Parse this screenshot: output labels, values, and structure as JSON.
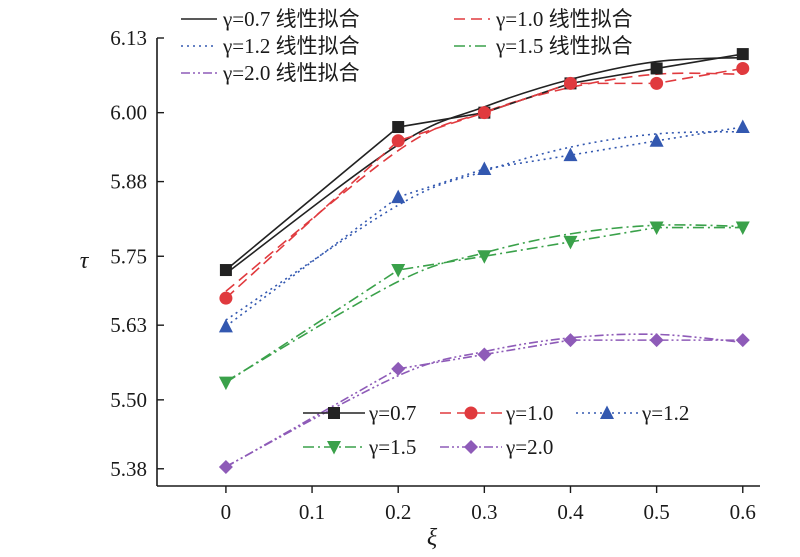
{
  "chart_data": {
    "type": "line",
    "xlabel": "ξ",
    "ylabel": "τ",
    "xlim": [
      -0.08,
      0.62
    ],
    "ylim": [
      5.35,
      6.13
    ],
    "x_ticks": [
      0,
      0.1,
      0.2,
      0.3,
      0.4,
      0.5,
      0.6
    ],
    "x_tick_labels": [
      "0",
      "0.1",
      "0.2",
      "0.3",
      "0.4",
      "0.5",
      "0.6"
    ],
    "y_ticks": [
      5.38,
      5.5,
      5.63,
      5.75,
      5.88,
      6.0,
      6.13
    ],
    "y_tick_labels": [
      "5.38",
      "5.50",
      "5.63",
      "5.75",
      "5.88",
      "6.00",
      "6.13"
    ],
    "grid": false,
    "x": [
      0,
      0.2,
      0.3,
      0.4,
      0.5,
      0.6
    ],
    "series": [
      {
        "name": "γ=0.7",
        "fit_label": "γ=0.7 线性拟合",
        "color": "#222222",
        "marker": "square",
        "values": [
          5.726,
          5.975,
          6.0,
          6.051,
          6.077,
          6.102
        ],
        "fit_values": [
          5.72,
          5.944,
          6.01,
          6.058,
          6.089,
          6.096
        ]
      },
      {
        "name": "γ=1.0",
        "fit_label": "γ=1.0 线性拟合",
        "color": "#e03a3e",
        "marker": "circle",
        "values": [
          5.677,
          5.951,
          6.0,
          6.051,
          6.051,
          6.077
        ],
        "fit_values": [
          5.689,
          5.934,
          6.001,
          6.044,
          6.067,
          6.067
        ]
      },
      {
        "name": "γ=1.2",
        "fit_label": "γ=1.2 线性拟合",
        "color": "#3358b0",
        "marker": "triangle-up",
        "values": [
          5.628,
          5.853,
          5.902,
          5.926,
          5.951,
          5.975
        ],
        "fit_values": [
          5.639,
          5.839,
          5.898,
          5.94,
          5.963,
          5.967
        ]
      },
      {
        "name": "γ=1.5",
        "fit_label": "γ=1.5 线性拟合",
        "color": "#3aa14a",
        "marker": "triangle-down",
        "values": [
          5.53,
          5.726,
          5.75,
          5.775,
          5.8,
          5.8
        ],
        "fit_values": [
          5.532,
          5.706,
          5.756,
          5.789,
          5.804,
          5.802
        ]
      },
      {
        "name": "γ=2.0",
        "fit_label": "γ=2.0 线性拟合",
        "color": "#8e5bb8",
        "marker": "diamond",
        "values": [
          5.383,
          5.554,
          5.579,
          5.604,
          5.604,
          5.604
        ],
        "fit_values": [
          5.384,
          5.542,
          5.584,
          5.608,
          5.614,
          5.6
        ]
      }
    ]
  }
}
